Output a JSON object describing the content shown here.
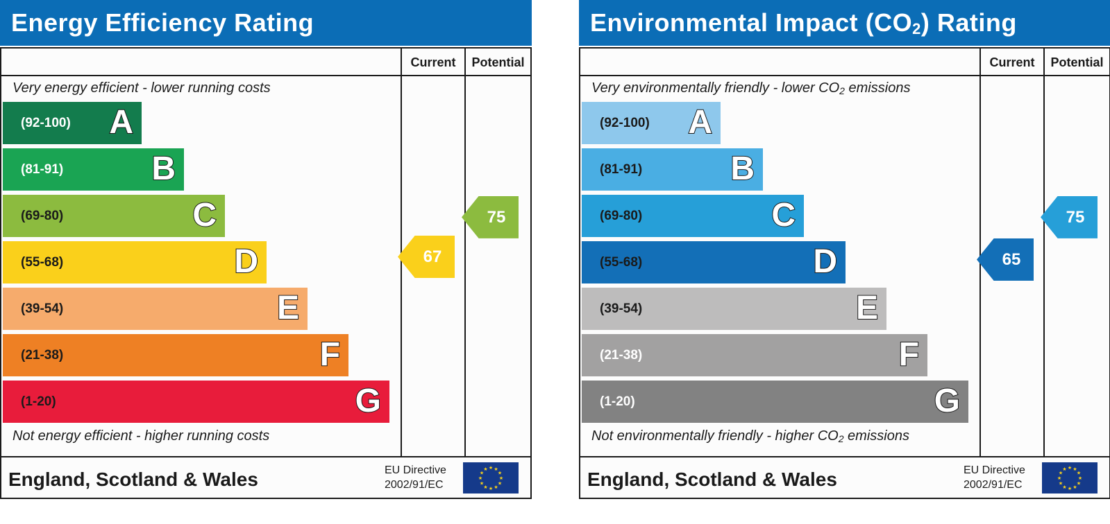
{
  "chart_data": [
    {
      "type": "bar",
      "title": "Energy Efficiency Rating",
      "top_caption": "Very energy efficient - lower running costs",
      "bottom_caption": "Not energy efficient - higher running costs",
      "columns": [
        "Current",
        "Potential"
      ],
      "bands": [
        {
          "range": "(92-100)",
          "letter": "A",
          "color": "#137c4d",
          "text_color": "#ffffff"
        },
        {
          "range": "(81-91)",
          "letter": "B",
          "color": "#1aa453",
          "text_color": "#ffffff"
        },
        {
          "range": "(69-80)",
          "letter": "C",
          "color": "#8cbb3f",
          "text_color": "#1a1a1a"
        },
        {
          "range": "(55-68)",
          "letter": "D",
          "color": "#fad01b",
          "text_color": "#1a1a1a"
        },
        {
          "range": "(39-54)",
          "letter": "E",
          "color": "#f6ab6c",
          "text_color": "#1a1a1a"
        },
        {
          "range": "(21-38)",
          "letter": "F",
          "color": "#ee8024",
          "text_color": "#1a1a1a"
        },
        {
          "range": "(1-20)",
          "letter": "G",
          "color": "#e81c3b",
          "text_color": "#1a1a1a"
        }
      ],
      "current": {
        "value": "67",
        "band": "D",
        "color": "#fad01b"
      },
      "potential": {
        "value": "75",
        "band": "C",
        "color": "#8cbb3f"
      },
      "footer": "England, Scotland & Wales",
      "eu_line1": "EU Directive",
      "eu_line2": "2002/91/EC"
    },
    {
      "type": "bar",
      "title_main": "Environmental Impact (CO",
      "title_sub": "2",
      "title_end": ") Rating",
      "top_caption_main": "Very environmentally friendly - lower CO",
      "top_caption_sub": "2",
      "top_caption_end": " emissions",
      "bottom_caption_main": "Not environmentally friendly - higher CO",
      "bottom_caption_sub": "2",
      "bottom_caption_end": " emissions",
      "columns": [
        "Current",
        "Potential"
      ],
      "bands": [
        {
          "range": "(92-100)",
          "letter": "A",
          "color": "#8ec8ec",
          "text_color": "#1a1a1a"
        },
        {
          "range": "(81-91)",
          "letter": "B",
          "color": "#4aaee3",
          "text_color": "#1a1a1a"
        },
        {
          "range": "(69-80)",
          "letter": "C",
          "color": "#269fd8",
          "text_color": "#1a1a1a"
        },
        {
          "range": "(55-68)",
          "letter": "D",
          "color": "#136fb7",
          "text_color": "#1a1a1a"
        },
        {
          "range": "(39-54)",
          "letter": "E",
          "color": "#bdbcbc",
          "text_color": "#1a1a1a"
        },
        {
          "range": "(21-38)",
          "letter": "F",
          "color": "#a2a1a1",
          "text_color": "#ffffff"
        },
        {
          "range": "(1-20)",
          "letter": "G",
          "color": "#828282",
          "text_color": "#ffffff"
        }
      ],
      "current": {
        "value": "65",
        "band": "D",
        "color": "#136fb7"
      },
      "potential": {
        "value": "75",
        "band": "C",
        "color": "#269fd8"
      },
      "footer": "England, Scotland & Wales",
      "eu_line1": "EU Directive",
      "eu_line2": "2002/91/EC"
    }
  ]
}
